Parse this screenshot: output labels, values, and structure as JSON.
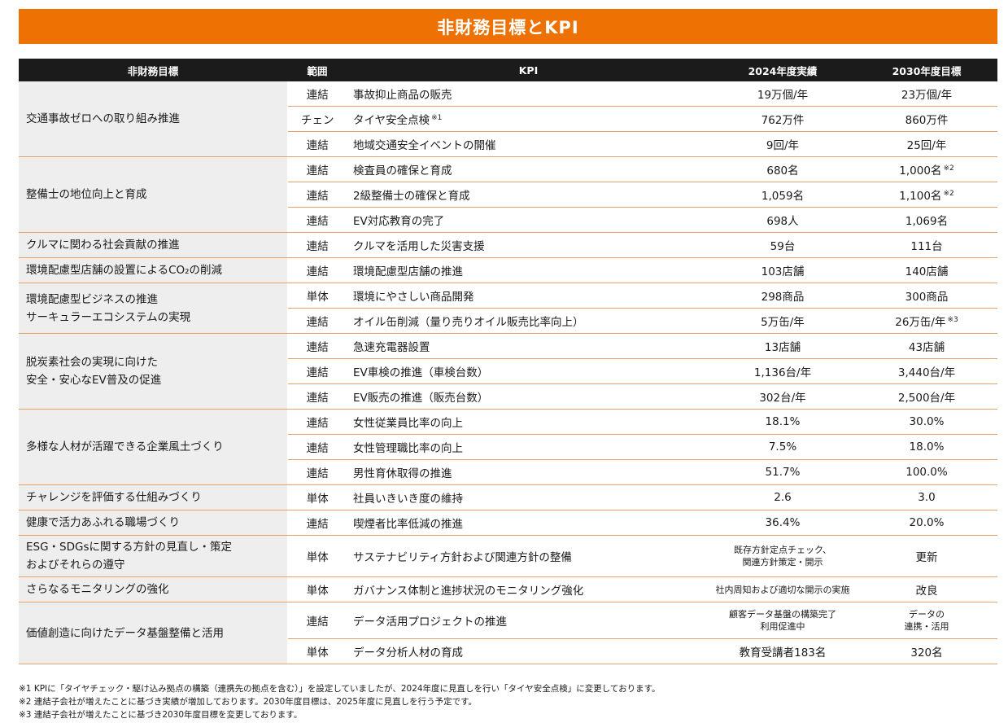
{
  "banner_title": "非財務目標とKPI",
  "headers": {
    "goal": "非財務目標",
    "scope": "範囲",
    "kpi": "KPI",
    "actual": "2024年度実績",
    "target": "2030年度目標"
  },
  "rows": [
    {
      "goal": "交通事故ゼロへの取り組み推進",
      "scope": "連結",
      "kpi": "事故抑止商品の販売",
      "actual": "19万個/年",
      "target": "23万個/年"
    },
    {
      "scope": "チェン",
      "kpi": "タイヤ安全点検",
      "kpi_note": "※1",
      "actual": "762万件",
      "target": "860万件"
    },
    {
      "scope": "連結",
      "kpi": "地域交通安全イベントの開催",
      "actual": "9回/年",
      "target": "25回/年"
    },
    {
      "goal": "整備士の地位向上と育成",
      "scope": "連結",
      "kpi": "検査員の確保と育成",
      "actual": "680名",
      "target": "1,000名",
      "target_note": "※2"
    },
    {
      "scope": "連結",
      "kpi": "2級整備士の確保と育成",
      "actual": "1,059名",
      "target": "1,100名",
      "target_note": "※2"
    },
    {
      "scope": "連結",
      "kpi": "EV対応教育の完了",
      "actual": "698人",
      "target": "1,069名"
    },
    {
      "goal": "クルマに関わる社会貢献の推進",
      "scope": "連結",
      "kpi": "クルマを活用した災害支援",
      "actual": "59台",
      "target": "111台"
    },
    {
      "goal": "環境配慮型店舗の設置によるCO₂の削減",
      "scope": "連結",
      "kpi": "環境配慮型店舗の推進",
      "actual": "103店舗",
      "target": "140店舗"
    },
    {
      "goal_line1": "環境配慮型ビジネスの推進",
      "goal_line2": "サーキュラーエコシステムの実現",
      "scope": "単体",
      "kpi": "環境にやさしい商品開発",
      "actual": "298商品",
      "target": "300商品"
    },
    {
      "scope": "連結",
      "kpi": "オイル缶削減（量り売りオイル販売比率向上）",
      "actual": "5万缶/年",
      "target": "26万缶/年",
      "target_note": "※3"
    },
    {
      "goal_line1": "脱炭素社会の実現に向けた",
      "goal_line2": "安全・安心なEV普及の促進",
      "scope": "連結",
      "kpi": "急速充電器設置",
      "actual": "13店舗",
      "target": "43店舗"
    },
    {
      "scope": "連結",
      "kpi": "EV車検の推進（車検台数）",
      "actual": "1,136台/年",
      "target": "3,440台/年"
    },
    {
      "scope": "連結",
      "kpi": "EV販売の推進（販売台数）",
      "actual": "302台/年",
      "target": "2,500台/年"
    },
    {
      "goal": "多様な人材が活躍できる企業風土づくり",
      "scope": "連結",
      "kpi": "女性従業員比率の向上",
      "actual": "18.1%",
      "target": "30.0%"
    },
    {
      "scope": "連結",
      "kpi": "女性管理職比率の向上",
      "actual": "7.5%",
      "target": "18.0%"
    },
    {
      "scope": "連結",
      "kpi": "男性育休取得の推進",
      "actual": "51.7%",
      "target": "100.0%"
    },
    {
      "goal": "チャレンジを評価する仕組みづくり",
      "scope": "単体",
      "kpi": "社員いきいき度の維持",
      "actual": "2.6",
      "target": "3.0"
    },
    {
      "goal": "健康で活力あふれる職場づくり",
      "scope": "連結",
      "kpi": "喫煙者比率低減の推進",
      "actual": "36.4%",
      "target": "20.0%"
    },
    {
      "goal_line1": "ESG・SDGsに関する方針の見直し・策定",
      "goal_line2": "およびそれらの遵守",
      "scope": "単体",
      "kpi": "サステナビリティ方針および関連方針の整備",
      "actual_line1": "既存方針定点チェック、",
      "actual_line2": "関連方針策定・開示",
      "target": "更新"
    },
    {
      "goal": "さらなるモニタリングの強化",
      "scope": "単体",
      "kpi": "ガバナンス体制と進捗状況のモニタリング強化",
      "actual": "社内周知および適切な開示の実施",
      "target": "改良"
    },
    {
      "goal": "価値創造に向けたデータ基盤整備と活用",
      "scope": "連結",
      "kpi": "データ活用プロジェクトの推進",
      "actual_line1": "顧客データ基盤の構築完了",
      "actual_line2": "利用促進中",
      "target_line1": "データの",
      "target_line2": "連携・活用"
    },
    {
      "scope": "単体",
      "kpi": "データ分析人材の育成",
      "actual": "教育受講者183名",
      "target": "320名"
    }
  ],
  "notes": [
    "※1 KPIに「タイヤチェック・駆け込み拠点の構築（連携先の拠点を含む）」を設定していましたが、2024年度に見直しを行い「タイヤ安全点検」に変更しております。",
    "※2 連結子会社が増えたことに基づき実績が増加しております。2030年度目標は、2025年度に見直しを行う予定です。",
    "※3 連結子会社が増えたことに基づき2030年度目標を変更しております。"
  ]
}
